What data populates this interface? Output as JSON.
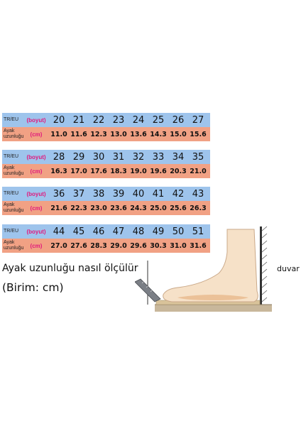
{
  "label_size": "TR/EU",
  "label_size_unit": "(boyut)",
  "label_length": "Ayak uzunluğu",
  "label_length_unit": "(cm)",
  "tables": [
    {
      "sizes": [
        "20",
        "21",
        "22",
        "23",
        "24",
        "25",
        "26",
        "27"
      ],
      "lengths": [
        "11.0",
        "11.6",
        "12.3",
        "13.0",
        "13.6",
        "14.3",
        "15.0",
        "15.6"
      ]
    },
    {
      "sizes": [
        "28",
        "29",
        "30",
        "31",
        "32",
        "33",
        "34",
        "35"
      ],
      "lengths": [
        "16.3",
        "17.0",
        "17.6",
        "18.3",
        "19.0",
        "19.6",
        "20.3",
        "21.0"
      ]
    },
    {
      "sizes": [
        "36",
        "37",
        "38",
        "39",
        "40",
        "41",
        "42",
        "43"
      ],
      "lengths": [
        "21.6",
        "22.3",
        "23.0",
        "23.6",
        "24.3",
        "25.0",
        "25.6",
        "26.3"
      ]
    },
    {
      "sizes": [
        "44",
        "45",
        "46",
        "47",
        "48",
        "49",
        "50",
        "51"
      ],
      "lengths": [
        "27.0",
        "27.6",
        "28.3",
        "29.0",
        "29.6",
        "30.3",
        "31.0",
        "31.6"
      ]
    }
  ],
  "heading": "Ayak uzunluğu nasıl ölçülür",
  "unit_note": "(Birim: cm)",
  "wall_label": "duvar",
  "colors": {
    "size_row": "#9ec4ec",
    "length_row": "#f1a184",
    "unit_text": "#e0197d"
  }
}
